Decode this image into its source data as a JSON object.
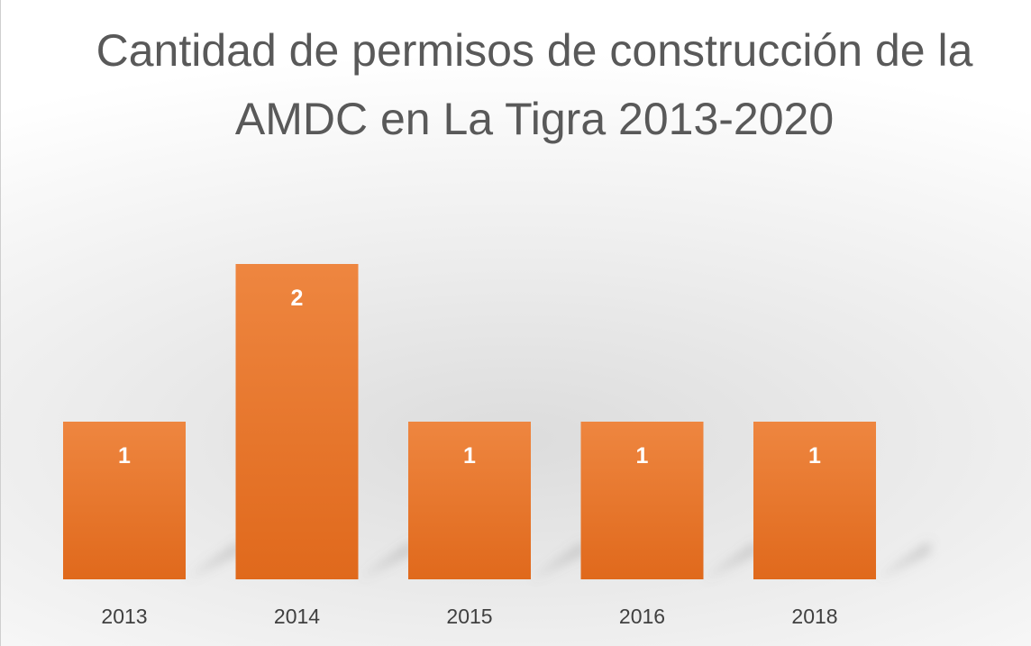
{
  "chart_data": {
    "type": "bar",
    "title": "Cantidad de permisos de construcción de la AMDC en La Tigra 2013-2020",
    "xlabel": "",
    "ylabel": "",
    "categories": [
      "2013",
      "2014",
      "2015",
      "2016",
      "2018"
    ],
    "values": [
      1,
      2,
      1,
      1,
      1
    ],
    "data_labels": [
      "1",
      "2",
      "1",
      "1",
      "1"
    ],
    "ylim": [
      0,
      2
    ],
    "grid": false,
    "legend": "none",
    "bar_color": "#e8702a",
    "bar_color_top": "#ee8640",
    "bar_color_bottom": "#e0691c"
  }
}
